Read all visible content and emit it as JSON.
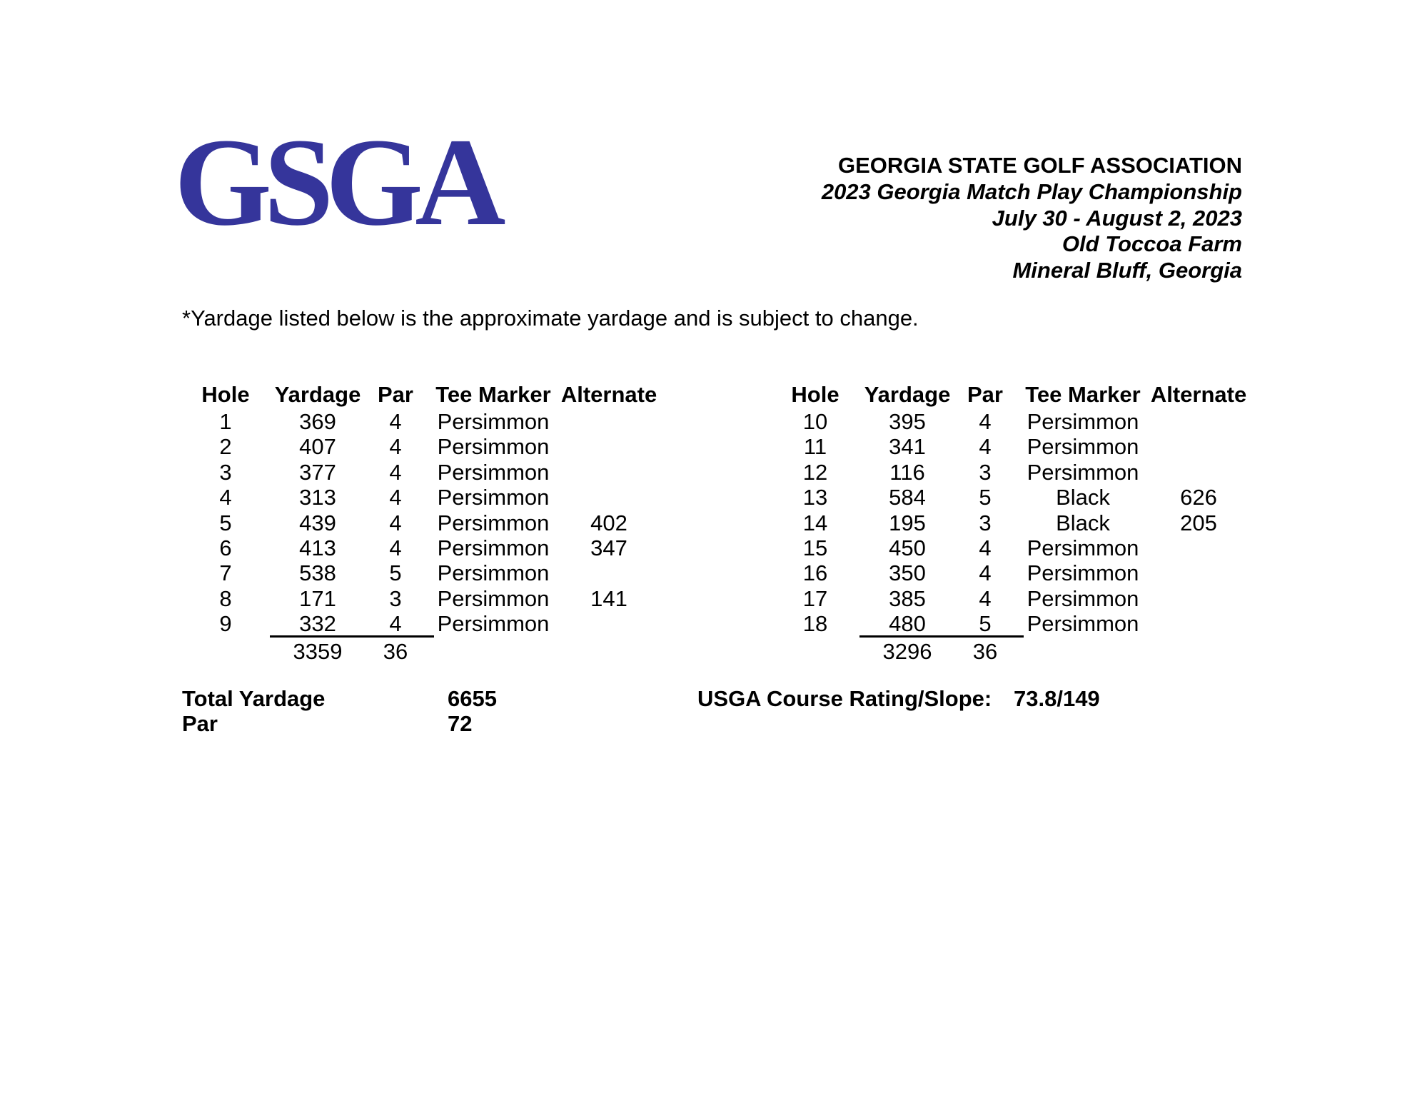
{
  "logo": {
    "text": "GSGA",
    "color": "#35359b"
  },
  "header": {
    "association": "GEORGIA STATE GOLF ASSOCIATION",
    "event": "2023 Georgia Match Play Championship",
    "dates": "July 30 - August 2, 2023",
    "venue": "Old Toccoa Farm",
    "location": "Mineral Bluff, Georgia"
  },
  "disclaimer": "*Yardage listed below is the approximate yardage and is subject to change.",
  "tables": [
    {
      "name": "front-nine",
      "columns": [
        "Hole",
        "Yardage",
        "Par",
        "Tee Marker",
        "Alternate"
      ],
      "rows": [
        {
          "hole": "1",
          "yardage": "369",
          "par": "4",
          "tee_marker": "Persimmon",
          "alternate": ""
        },
        {
          "hole": "2",
          "yardage": "407",
          "par": "4",
          "tee_marker": "Persimmon",
          "alternate": ""
        },
        {
          "hole": "3",
          "yardage": "377",
          "par": "4",
          "tee_marker": "Persimmon",
          "alternate": ""
        },
        {
          "hole": "4",
          "yardage": "313",
          "par": "4",
          "tee_marker": "Persimmon",
          "alternate": ""
        },
        {
          "hole": "5",
          "yardage": "439",
          "par": "4",
          "tee_marker": "Persimmon",
          "alternate": "402"
        },
        {
          "hole": "6",
          "yardage": "413",
          "par": "4",
          "tee_marker": "Persimmon",
          "alternate": "347"
        },
        {
          "hole": "7",
          "yardage": "538",
          "par": "5",
          "tee_marker": "Persimmon",
          "alternate": ""
        },
        {
          "hole": "8",
          "yardage": "171",
          "par": "3",
          "tee_marker": "Persimmon",
          "alternate": "141"
        },
        {
          "hole": "9",
          "yardage": "332",
          "par": "4",
          "tee_marker": "Persimmon",
          "alternate": ""
        }
      ],
      "totals": {
        "yardage": "3359",
        "par": "36"
      }
    },
    {
      "name": "back-nine",
      "columns": [
        "Hole",
        "Yardage",
        "Par",
        "Tee Marker",
        "Alternate"
      ],
      "rows": [
        {
          "hole": "10",
          "yardage": "395",
          "par": "4",
          "tee_marker": "Persimmon",
          "alternate": ""
        },
        {
          "hole": "11",
          "yardage": "341",
          "par": "4",
          "tee_marker": "Persimmon",
          "alternate": ""
        },
        {
          "hole": "12",
          "yardage": "116",
          "par": "3",
          "tee_marker": "Persimmon",
          "alternate": ""
        },
        {
          "hole": "13",
          "yardage": "584",
          "par": "5",
          "tee_marker": "Black",
          "alternate": "626"
        },
        {
          "hole": "14",
          "yardage": "195",
          "par": "3",
          "tee_marker": "Black",
          "alternate": "205"
        },
        {
          "hole": "15",
          "yardage": "450",
          "par": "4",
          "tee_marker": "Persimmon",
          "alternate": ""
        },
        {
          "hole": "16",
          "yardage": "350",
          "par": "4",
          "tee_marker": "Persimmon",
          "alternate": ""
        },
        {
          "hole": "17",
          "yardage": "385",
          "par": "4",
          "tee_marker": "Persimmon",
          "alternate": ""
        },
        {
          "hole": "18",
          "yardage": "480",
          "par": "5",
          "tee_marker": "Persimmon",
          "alternate": ""
        }
      ],
      "totals": {
        "yardage": "3296",
        "par": "36"
      }
    }
  ],
  "summary": {
    "total_yardage_label": "Total Yardage",
    "total_yardage_value": "6655",
    "par_label": "Par",
    "par_value": "72",
    "rating_label": "USGA Course Rating/Slope:",
    "rating_value": "73.8/149"
  }
}
